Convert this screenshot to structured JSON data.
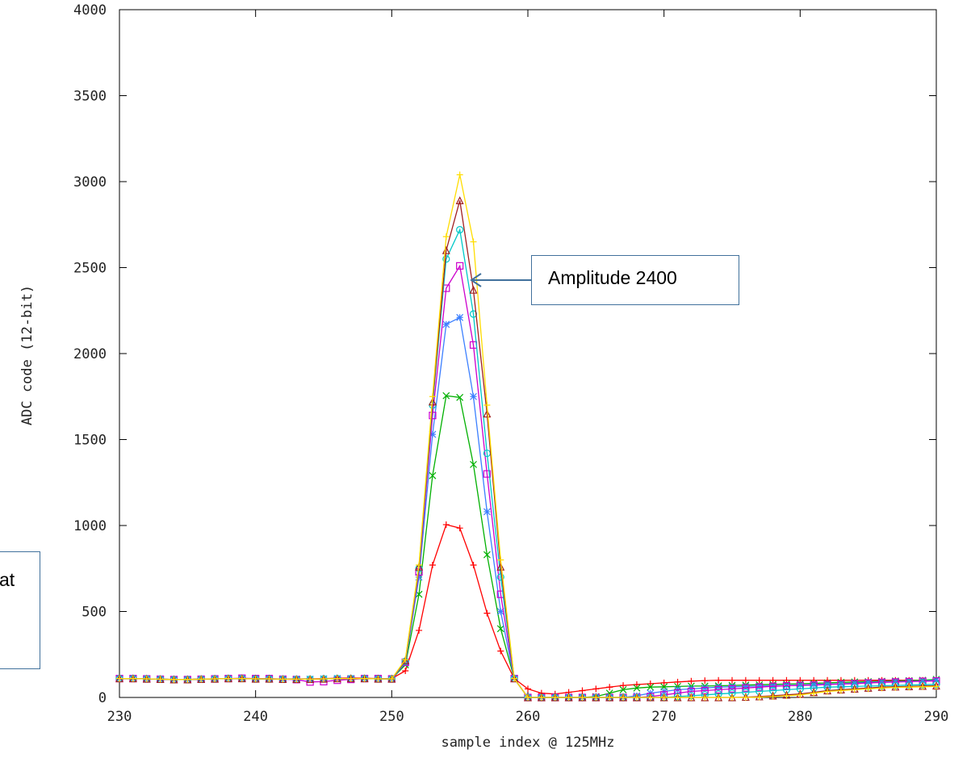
{
  "chart_data": {
    "type": "line",
    "xlabel": "sample index @ 125MHz",
    "ylabel": "ADC code (12-bit)",
    "xlim": [
      230,
      290
    ],
    "ylim": [
      0,
      4000
    ],
    "x_ticks": [
      230,
      240,
      250,
      260,
      270,
      280,
      290
    ],
    "y_ticks": [
      0,
      500,
      1000,
      1500,
      2000,
      2500,
      3000,
      3500,
      4000
    ],
    "grid": false,
    "x": [
      230,
      231,
      232,
      233,
      234,
      235,
      236,
      237,
      238,
      239,
      240,
      241,
      242,
      243,
      244,
      245,
      246,
      247,
      248,
      249,
      250,
      251,
      252,
      253,
      254,
      255,
      256,
      257,
      258,
      259,
      260,
      261,
      262,
      263,
      264,
      265,
      266,
      267,
      268,
      269,
      270,
      271,
      272,
      273,
      274,
      275,
      276,
      277,
      278,
      279,
      280,
      281,
      282,
      283,
      284,
      285,
      286,
      287,
      288,
      289,
      290
    ],
    "series": [
      {
        "color": "#ff0000",
        "marker": "plus",
        "values": [
          110,
          110,
          108,
          106,
          105,
          105,
          107,
          108,
          110,
          110,
          108,
          108,
          107,
          108,
          108,
          110,
          112,
          113,
          112,
          110,
          110,
          155,
          390,
          770,
          1005,
          985,
          770,
          490,
          270,
          110,
          50,
          25,
          20,
          30,
          40,
          50,
          60,
          70,
          75,
          80,
          85,
          90,
          95,
          98,
          100,
          100,
          100,
          100,
          100,
          100,
          100,
          100,
          100,
          100,
          100,
          100,
          100,
          100,
          100,
          100,
          100
        ]
      },
      {
        "color": "#00b000",
        "marker": "cross",
        "values": [
          110,
          110,
          108,
          106,
          104,
          104,
          106,
          108,
          110,
          110,
          108,
          108,
          106,
          106,
          106,
          108,
          110,
          110,
          110,
          108,
          108,
          190,
          600,
          1290,
          1755,
          1745,
          1355,
          830,
          400,
          110,
          0,
          0,
          0,
          0,
          0,
          5,
          25,
          45,
          55,
          60,
          62,
          64,
          66,
          66,
          68,
          70,
          72,
          74,
          76,
          78,
          80,
          82,
          85,
          88,
          90,
          92,
          94,
          96,
          98,
          100,
          105
        ]
      },
      {
        "color": "#3b7fff",
        "marker": "asterisk",
        "values": [
          110,
          110,
          108,
          106,
          104,
          104,
          106,
          108,
          110,
          110,
          108,
          108,
          106,
          106,
          106,
          108,
          110,
          110,
          110,
          108,
          108,
          200,
          700,
          1530,
          2170,
          2210,
          1750,
          1080,
          500,
          110,
          0,
          0,
          0,
          0,
          0,
          0,
          0,
          0,
          10,
          25,
          35,
          45,
          50,
          55,
          60,
          62,
          64,
          66,
          68,
          70,
          72,
          75,
          78,
          80,
          84,
          88,
          90,
          92,
          94,
          96,
          100
        ]
      },
      {
        "color": "#cc00cc",
        "marker": "square",
        "values": [
          110,
          110,
          108,
          106,
          104,
          104,
          106,
          108,
          110,
          112,
          110,
          110,
          106,
          104,
          90,
          92,
          100,
          105,
          110,
          110,
          108,
          205,
          730,
          1640,
          2380,
          2510,
          2050,
          1300,
          600,
          110,
          0,
          0,
          0,
          0,
          0,
          0,
          0,
          0,
          0,
          5,
          15,
          25,
          35,
          40,
          45,
          50,
          55,
          60,
          65,
          68,
          70,
          72,
          75,
          78,
          80,
          84,
          88,
          90,
          92,
          94,
          96
        ]
      },
      {
        "color": "#00c8c8",
        "marker": "circle",
        "values": [
          110,
          110,
          108,
          106,
          104,
          104,
          106,
          108,
          110,
          110,
          108,
          108,
          106,
          106,
          106,
          108,
          110,
          110,
          110,
          108,
          108,
          210,
          750,
          1700,
          2550,
          2720,
          2230,
          1420,
          700,
          110,
          0,
          0,
          0,
          0,
          0,
          0,
          0,
          0,
          0,
          0,
          0,
          5,
          10,
          15,
          20,
          25,
          30,
          35,
          40,
          45,
          50,
          55,
          60,
          62,
          64,
          66,
          68,
          70,
          72,
          74,
          76
        ]
      },
      {
        "color": "#a02020",
        "marker": "triangle",
        "values": [
          110,
          110,
          108,
          106,
          104,
          104,
          106,
          108,
          110,
          110,
          108,
          108,
          106,
          106,
          106,
          108,
          110,
          110,
          110,
          108,
          108,
          215,
          760,
          1720,
          2600,
          2890,
          2370,
          1650,
          760,
          110,
          0,
          0,
          0,
          0,
          0,
          0,
          0,
          0,
          0,
          0,
          0,
          0,
          0,
          0,
          0,
          0,
          2,
          5,
          10,
          15,
          20,
          30,
          40,
          45,
          50,
          55,
          60,
          62,
          64,
          66,
          68
        ]
      },
      {
        "color": "#ffdd00",
        "marker": "plus",
        "values": [
          110,
          110,
          108,
          106,
          104,
          104,
          106,
          108,
          110,
          110,
          108,
          108,
          106,
          106,
          106,
          108,
          110,
          110,
          110,
          108,
          108,
          220,
          770,
          1750,
          2680,
          3040,
          2650,
          1700,
          800,
          110,
          0,
          0,
          0,
          0,
          0,
          0,
          0,
          0,
          0,
          0,
          0,
          0,
          0,
          0,
          0,
          0,
          0,
          2,
          5,
          10,
          15,
          25,
          35,
          40,
          45,
          50,
          55,
          58,
          60,
          62,
          64
        ]
      }
    ],
    "annotations": [
      "Amplitude 2400"
    ]
  },
  "callouts": {
    "main": "Amplitude 2400",
    "left_fragment": "at"
  }
}
